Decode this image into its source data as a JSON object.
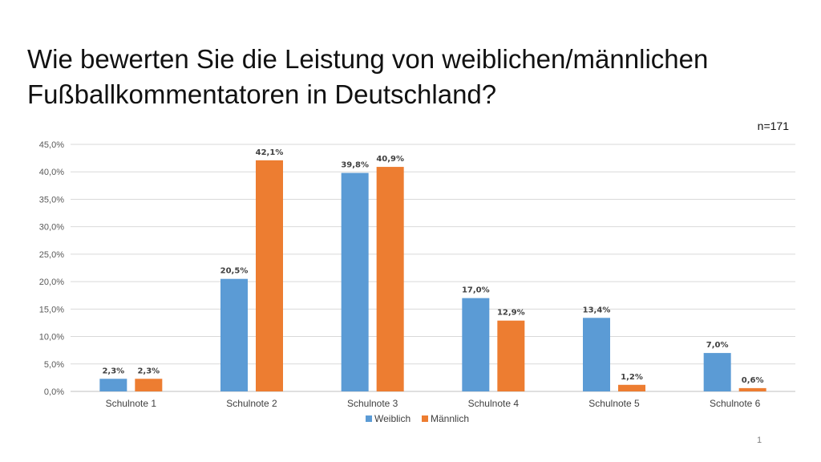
{
  "slide": {
    "title_line1": "Wie bewerten Sie die Leistung von weiblichen/männlichen",
    "title_line2": "Fußballkommentatoren in Deutschland?",
    "sample_size": "n=171",
    "page_number": "1"
  },
  "colors": {
    "weiblich": "#5b9bd5",
    "maennlich": "#ed7d31",
    "grid": "#d9d9d9",
    "axis": "#bfbfbf"
  },
  "chart_data": {
    "type": "bar",
    "categories": [
      "Schulnote 1",
      "Schulnote 2",
      "Schulnote 3",
      "Schulnote 4",
      "Schulnote 5",
      "Schulnote 6"
    ],
    "series": [
      {
        "name": "Weiblich",
        "values": [
          2.3,
          20.5,
          39.8,
          17.0,
          13.4,
          7.0
        ],
        "labels": [
          "2,3%",
          "20,5%",
          "39,8%",
          "17,0%",
          "13,4%",
          "7,0%"
        ]
      },
      {
        "name": "Männlich",
        "values": [
          2.3,
          42.1,
          40.9,
          12.9,
          1.2,
          0.6
        ],
        "labels": [
          "2,3%",
          "42,1%",
          "40,9%",
          "12,9%",
          "1,2%",
          "0,6%"
        ]
      }
    ],
    "y_ticks": [
      "0,0%",
      "5,0%",
      "10,0%",
      "15,0%",
      "20,0%",
      "25,0%",
      "30,0%",
      "35,0%",
      "40,0%",
      "45,0%"
    ],
    "ylim": [
      0,
      45
    ],
    "grid": true,
    "legend_position": "bottom"
  }
}
